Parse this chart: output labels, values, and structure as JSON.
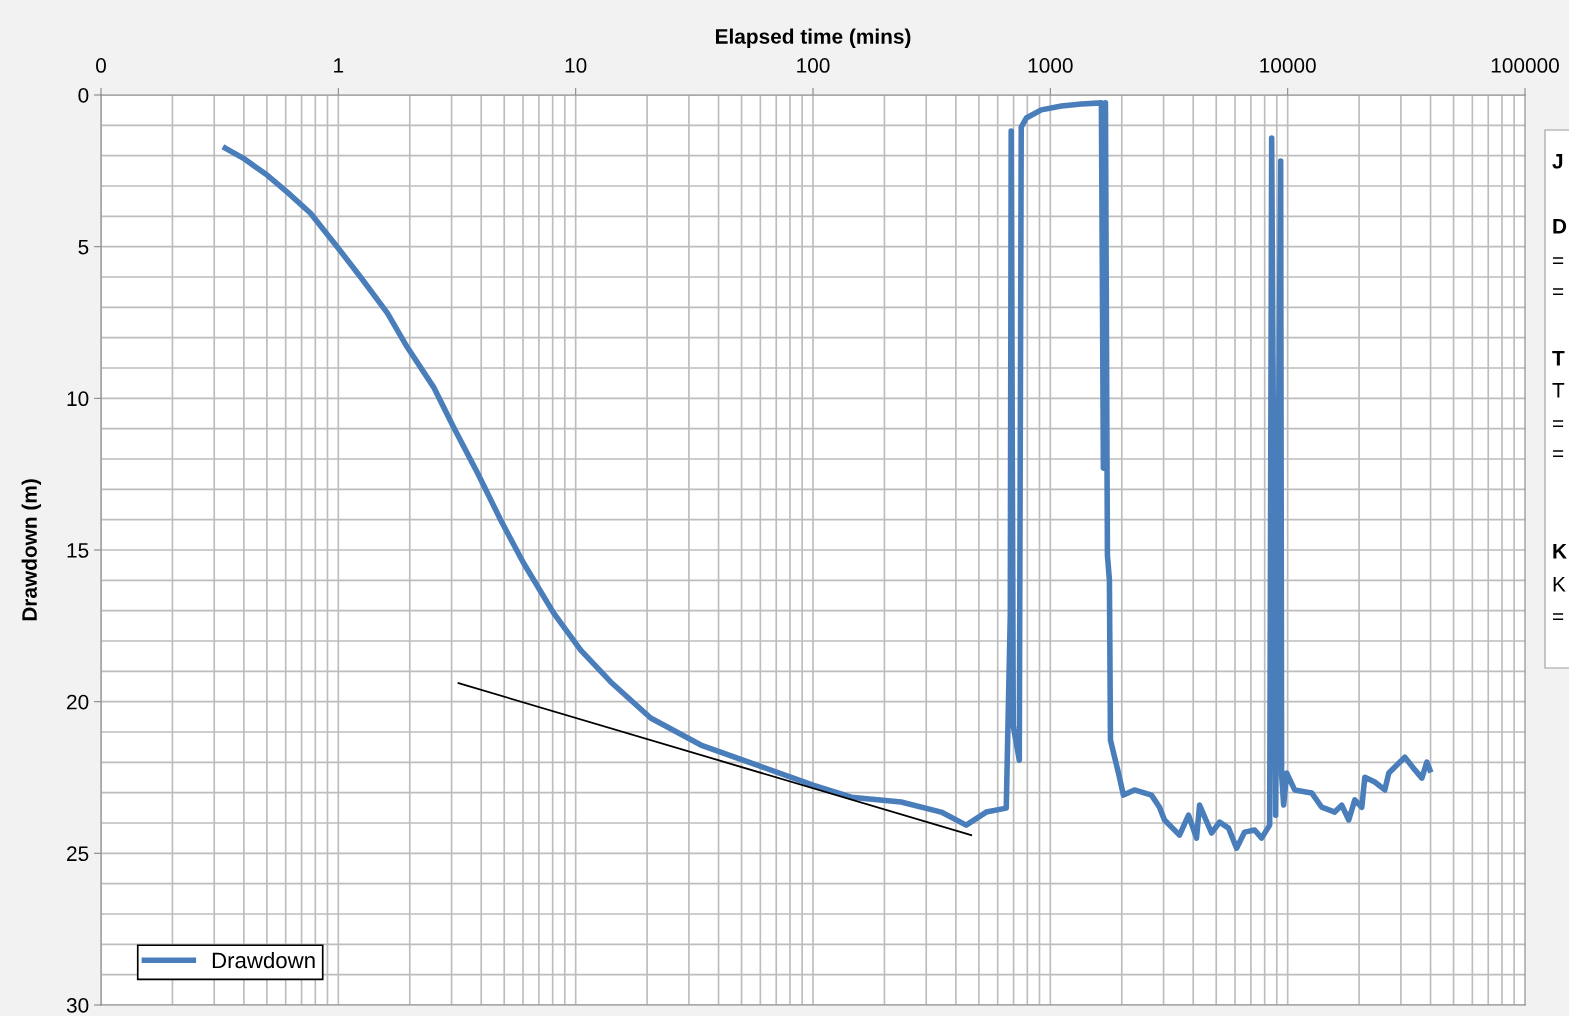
{
  "chart_data": {
    "type": "line",
    "xlabel": "Elapsed time (mins)",
    "ylabel": "Drawdown (m)",
    "log": "x",
    "xlim": [
      0.1,
      100000
    ],
    "xticks": [
      {
        "value": 0.1,
        "label": "0"
      },
      1,
      10,
      100,
      1000,
      10000,
      100000
    ],
    "ylim": [
      30,
      0
    ],
    "yticks": [
      0,
      5,
      10,
      15,
      20,
      25,
      30
    ],
    "grid": true,
    "legend": "bottom left",
    "marker": "none",
    "line_style": "solid",
    "series": [
      {
        "name": "Drawdown",
        "color": "#4a7ebb",
        "x": [
          0.334,
          0.397,
          0.501,
          0.609,
          0.762,
          0.99,
          1.24,
          1.61,
          1.95,
          2.52,
          3.06,
          3.86,
          4.83,
          6.03,
          8.08,
          10.5,
          14.05,
          20.7,
          33.7,
          54.7,
          100,
          145,
          235,
          347,
          442,
          537,
          652,
          678,
          684,
          698,
          740,
          754,
          792,
          916,
          1113,
          1351,
          1641,
          1673,
          1707,
          1740,
          1774,
          1792,
          1936,
          2032,
          2262,
          2668,
          2884,
          3027,
          3502,
          3822,
          4130,
          4254,
          4779,
          5164,
          5637,
          6092,
          6586,
          7258,
          7768,
          8397,
          8562,
          8901,
          9344,
          9430,
          9618,
          9903,
          10703,
          12627,
          13917,
          15790,
          16897,
          18088,
          19174,
          20530,
          21137,
          23285,
          25666,
          26684,
          31172,
          34360,
          36770,
          38600,
          39740
        ],
        "values": [
          1.75,
          2.08,
          2.64,
          3.2,
          3.89,
          5.01,
          6.0,
          7.19,
          8.31,
          9.63,
          10.95,
          12.46,
          14.01,
          15.43,
          17.08,
          18.3,
          19.35,
          20.54,
          21.43,
          22.02,
          22.75,
          23.15,
          23.31,
          23.64,
          24.07,
          23.64,
          23.51,
          17.14,
          1.19,
          20.8,
          21.93,
          1.06,
          0.76,
          0.49,
          0.36,
          0.3,
          0.26,
          12.3,
          0.26,
          15.17,
          15.99,
          21.27,
          22.35,
          23.08,
          22.91,
          23.08,
          23.48,
          23.9,
          24.4,
          23.74,
          24.5,
          23.41,
          24.33,
          23.97,
          24.17,
          24.83,
          24.3,
          24.23,
          24.5,
          24.07,
          1.42,
          23.74,
          2.18,
          22.42,
          23.41,
          22.35,
          22.91,
          23.01,
          23.48,
          23.64,
          23.41,
          23.9,
          23.24,
          23.48,
          22.49,
          22.65,
          22.91,
          22.35,
          21.83,
          22.25,
          22.52,
          21.99,
          22.25
        ]
      },
      {
        "color": "#000000",
        "x": [
          3.21,
          464
        ],
        "values": [
          19.39,
          24.4
        ]
      }
    ],
    "annotations": [
      "J",
      "D",
      "=",
      "=",
      "T",
      "T",
      "=",
      "=",
      "K",
      "K",
      "="
    ]
  }
}
